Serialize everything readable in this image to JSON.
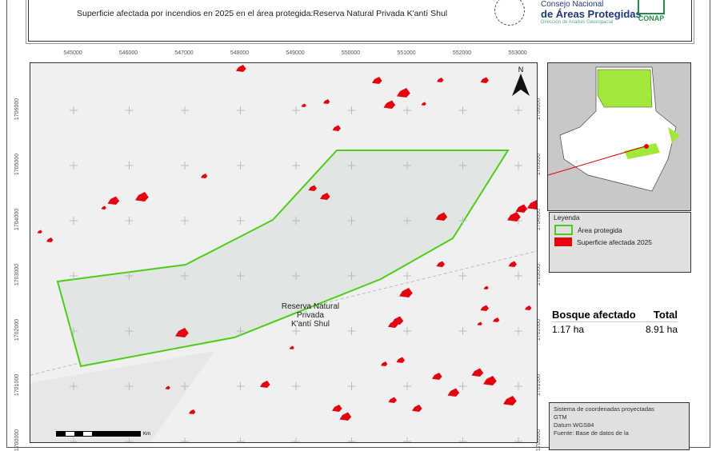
{
  "header": {
    "subtitle": "Superficie afectada por incendios en 2025 en el área protegida:Reserva Natural Privada K'antí Shul",
    "logo_guatemala": "GUATEMALA",
    "logo_conap_line1": "Consejo Nacional",
    "logo_conap_line2": "de Áreas Protegidas",
    "logo_conap_line3": "Dirección de Análisis Geoespacial",
    "logo_conap_badge": "CONAP"
  },
  "map": {
    "x_ticks": [
      "545000",
      "546000",
      "547000",
      "548000",
      "549000",
      "550000",
      "551000",
      "552000",
      "553000"
    ],
    "y_ticks": [
      "1706000",
      "1705000",
      "1704000",
      "1703000",
      "1702000",
      "1701000",
      "1700000"
    ],
    "area_label": [
      "Reserva Natural",
      "Privada",
      "K'antí Shul"
    ],
    "north": "N",
    "scale_unit": "Km",
    "colors": {
      "protected_area": "#4ccd1a",
      "burned": "#e4000f",
      "background": "#f0f0f0"
    }
  },
  "legend": {
    "title": "Leyenda",
    "items": [
      {
        "label": "Área protegida",
        "color": "#4ccd1a"
      },
      {
        "label": "Superficie afectada 2025",
        "color": "#e4000f"
      }
    ]
  },
  "stats": {
    "headers": [
      "Bosque afectado",
      "Total"
    ],
    "values": [
      "1.17 ha",
      "8.91 ha"
    ]
  },
  "coords": {
    "lines": [
      "Sistema de coordenadas proyectadas",
      "GTM",
      "Datum WGS84",
      "Fuente: Base de datos de la"
    ]
  }
}
